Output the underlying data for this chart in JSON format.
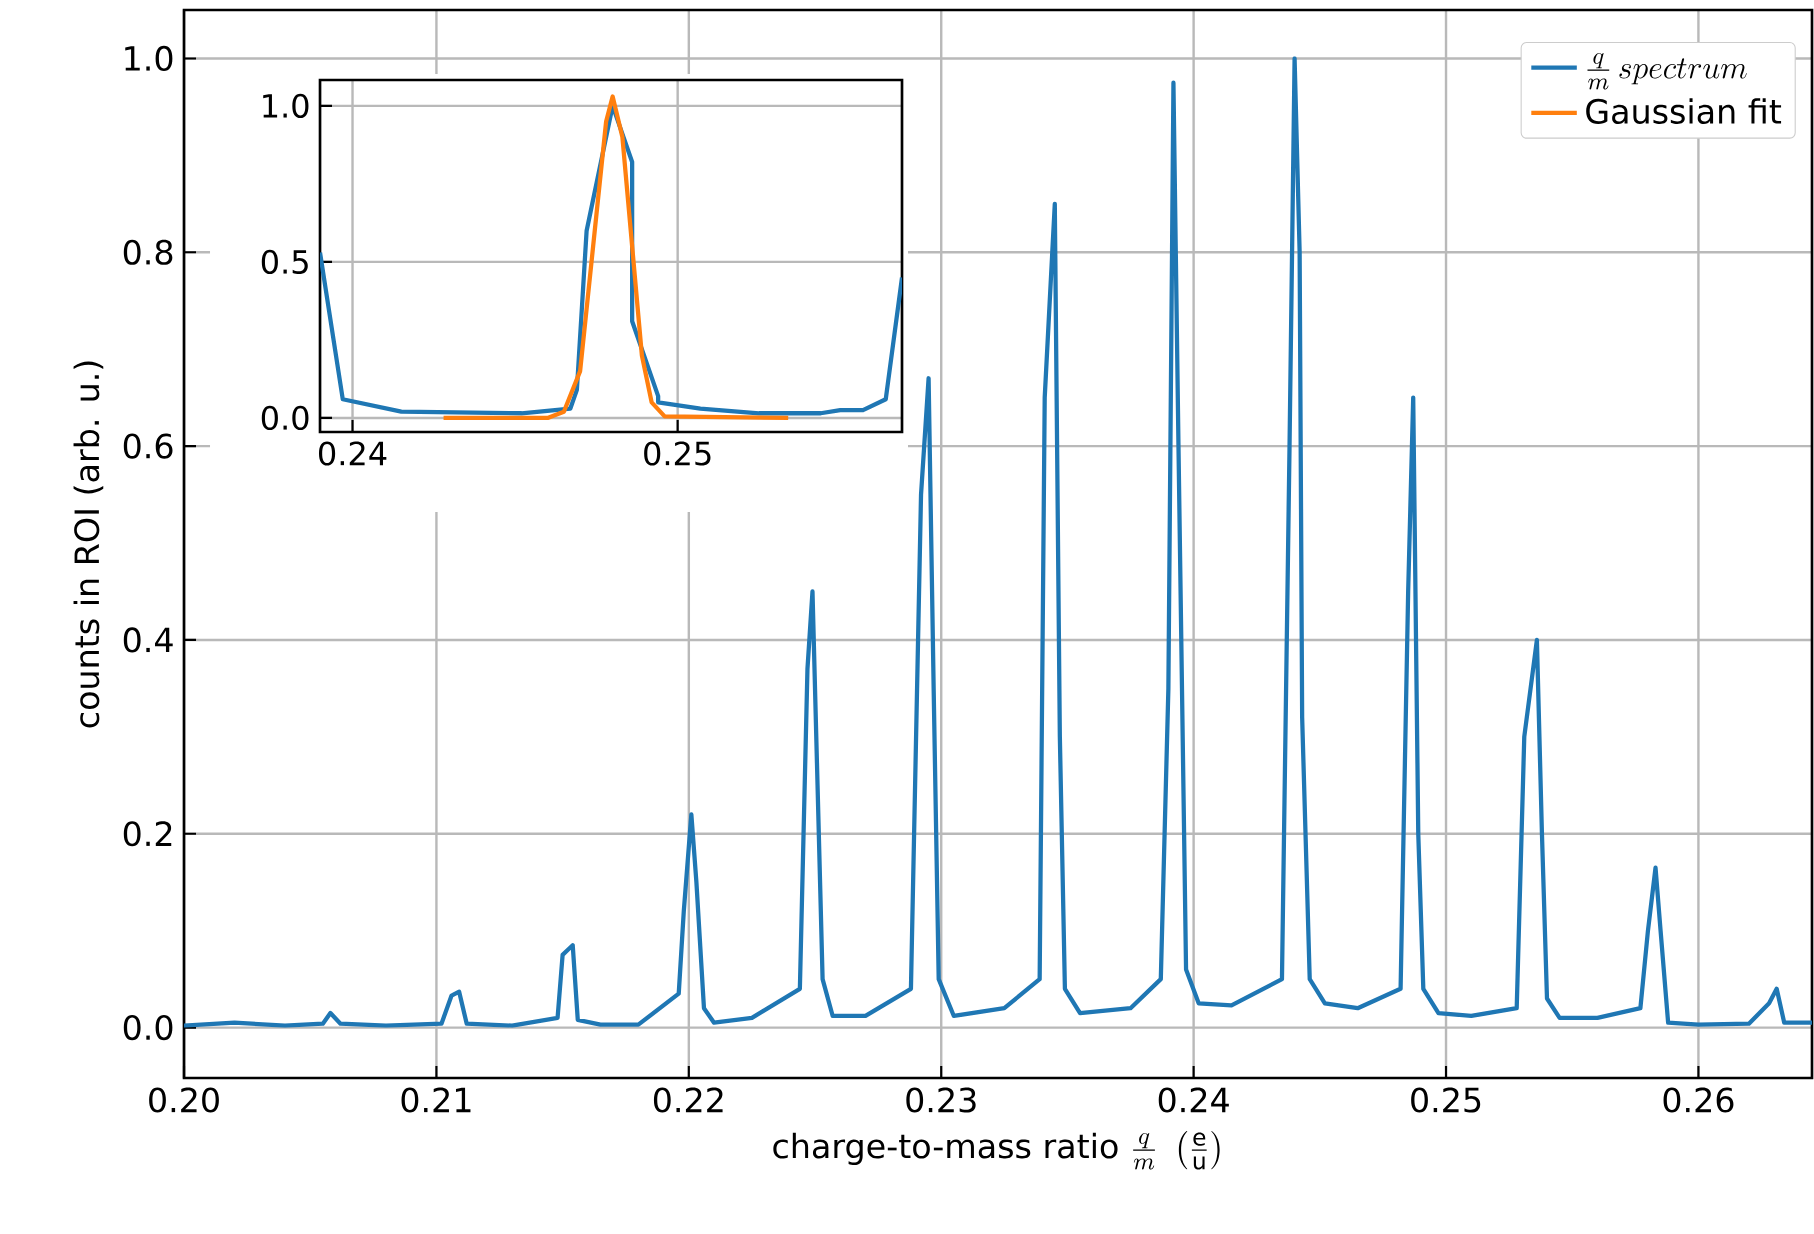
{
  "chart_data": [
    {
      "type": "line",
      "xlabel": "\\text{charge-to-mass ratio }\\frac{q}{m}\\ \\left(\\frac{\\mathrm{e}}{\\mathrm{u}}\\right)",
      "ylabel": "counts in ROI (arb. u.)",
      "xlim": [
        0.2,
        0.2645
      ],
      "ylim": [
        -0.052,
        1.05
      ],
      "xticks": [
        {
          "value": 0.2,
          "label": "0.20"
        },
        {
          "value": 0.21,
          "label": "0.21"
        },
        {
          "value": 0.22,
          "label": "0.22"
        },
        {
          "value": 0.23,
          "label": "0.23"
        },
        {
          "value": 0.24,
          "label": "0.24"
        },
        {
          "value": 0.25,
          "label": "0.25"
        },
        {
          "value": 0.26,
          "label": "0.26"
        }
      ],
      "yticks": [
        {
          "value": 0,
          "label": "0.0"
        },
        {
          "value": 0.2,
          "label": "0.2"
        },
        {
          "value": 0.4,
          "label": "0.4"
        },
        {
          "value": 0.6,
          "label": "0.6"
        },
        {
          "value": 0.8,
          "label": "0.8"
        },
        {
          "value": 1.0,
          "label": "1.0"
        }
      ],
      "grid": true,
      "legend": "top right",
      "series": [
        {
          "name": "\\frac{q}{m}\\,spectrum",
          "color": "#1f77b4",
          "x": [
            0.2,
            0.202,
            0.204,
            0.2055,
            0.2058,
            0.2062,
            0.208,
            0.2102,
            0.2106,
            0.2109,
            0.2112,
            0.213,
            0.2148,
            0.215,
            0.2152,
            0.2154,
            0.2156,
            0.2165,
            0.218,
            0.2196,
            0.2198,
            0.2201,
            0.2203,
            0.2206,
            0.221,
            0.2225,
            0.2244,
            0.2247,
            0.2249,
            0.2251,
            0.2253,
            0.2257,
            0.227,
            0.2288,
            0.2292,
            0.2295,
            0.2297,
            0.2299,
            0.2305,
            0.2325,
            0.2339,
            0.2341,
            0.2345,
            0.2347,
            0.2349,
            0.2355,
            0.2375,
            0.2387,
            0.239,
            0.2392,
            0.2394,
            0.2397,
            0.2402,
            0.2415,
            0.2435,
            0.2438,
            0.244,
            0.2442,
            0.2443,
            0.2446,
            0.2452,
            0.2465,
            0.2482,
            0.2485,
            0.2487,
            0.2489,
            0.2491,
            0.2497,
            0.251,
            0.2528,
            0.2531,
            0.2536,
            0.2538,
            0.254,
            0.2545,
            0.256,
            0.2577,
            0.258,
            0.2583,
            0.2585,
            0.2588,
            0.26,
            0.262,
            0.2628,
            0.2631,
            0.2634,
            0.2645
          ],
          "values": [
            0.002,
            0.005,
            0.002,
            0.004,
            0.015,
            0.004,
            0.002,
            0.004,
            0.033,
            0.037,
            0.004,
            0.002,
            0.01,
            0.075,
            0.08,
            0.085,
            0.008,
            0.003,
            0.003,
            0.035,
            0.12,
            0.22,
            0.15,
            0.02,
            0.005,
            0.01,
            0.04,
            0.37,
            0.45,
            0.25,
            0.05,
            0.012,
            0.012,
            0.04,
            0.55,
            0.67,
            0.35,
            0.05,
            0.012,
            0.02,
            0.05,
            0.65,
            0.85,
            0.3,
            0.04,
            0.015,
            0.02,
            0.05,
            0.35,
            0.975,
            0.6,
            0.06,
            0.025,
            0.023,
            0.05,
            0.6,
            1.0,
            0.8,
            0.32,
            0.05,
            0.025,
            0.02,
            0.04,
            0.45,
            0.65,
            0.2,
            0.04,
            0.015,
            0.012,
            0.02,
            0.3,
            0.4,
            0.2,
            0.03,
            0.01,
            0.01,
            0.02,
            0.1,
            0.165,
            0.1,
            0.005,
            0.003,
            0.004,
            0.025,
            0.04,
            0.005,
            0.005
          ]
        }
      ]
    },
    {
      "type": "line",
      "xlim": [
        0.239,
        0.2569
      ],
      "ylim": [
        -0.045,
        1.083
      ],
      "xticks": [
        0.24,
        0.25
      ],
      "yticks": [
        {
          "value": 0,
          "label": "0.0"
        },
        {
          "value": 0.5,
          "label": "0.5"
        },
        {
          "value": 1.0,
          "label": "1.0"
        }
      ],
      "grid": true,
      "series": [
        {
          "color": "#1f77b4",
          "x": [
            0.239,
            0.2397,
            0.2415,
            0.2452,
            0.2467,
            0.2469,
            0.2472,
            0.2476,
            0.248,
            0.2486,
            0.2486,
            0.2494,
            0.2494,
            0.2507,
            0.2525,
            0.2544,
            0.255,
            0.2557,
            0.2564,
            0.2569
          ],
          "values": [
            0.53,
            0.06,
            0.02,
            0.015,
            0.03,
            0.09,
            0.6,
            0.8,
            1.0,
            0.82,
            0.31,
            0.07,
            0.05,
            0.03,
            0.015,
            0.015,
            0.025,
            0.025,
            0.06,
            0.45
          ]
        },
        {
          "name": "Gaussian fit",
          "color": "#ff7f0e",
          "x": [
            0.2428,
            0.246,
            0.2465,
            0.247,
            0.2474,
            0.2478,
            0.248,
            0.2483,
            0.2486,
            0.2489,
            0.2492,
            0.2496,
            0.2534
          ],
          "values": [
            0.0,
            0.0,
            0.02,
            0.15,
            0.55,
            0.95,
            1.03,
            0.9,
            0.55,
            0.2,
            0.05,
            0.005,
            0.0
          ]
        }
      ]
    }
  ]
}
